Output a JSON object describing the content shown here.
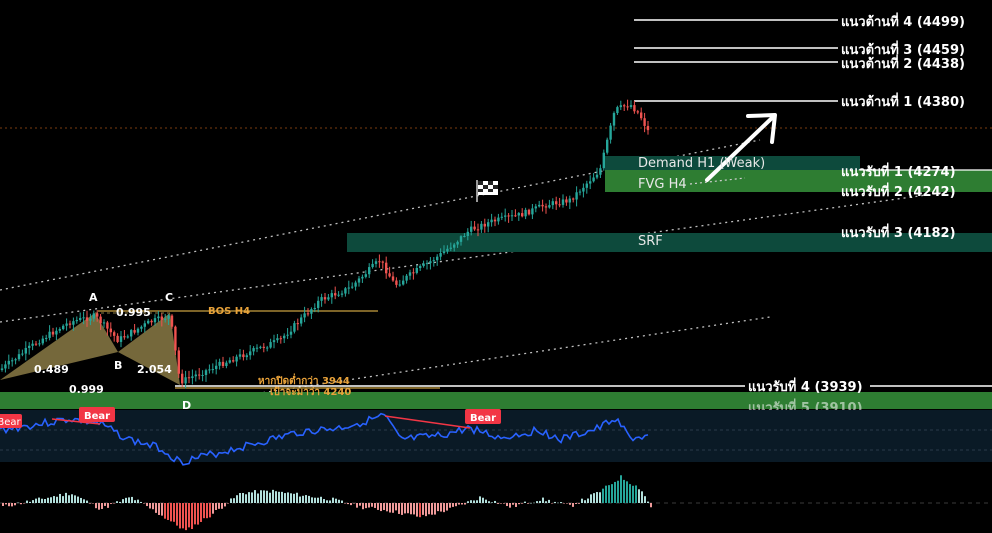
{
  "chart_data": {
    "type": "candlestick",
    "instrument_note": "",
    "y_range": [
      3880,
      4520
    ],
    "resistance_levels": [
      {
        "label": "แนวต้านที่ 4 (4499)",
        "value": 4499
      },
      {
        "label": "แนวต้านที่ 3 (4459)",
        "value": 4459
      },
      {
        "label": "แนวต้านที่ 2 (4438)",
        "value": 4438
      },
      {
        "label": "แนวต้านที่ 1 (4380)",
        "value": 4380
      }
    ],
    "support_levels": [
      {
        "label": "แนวรับที่ 1 (4274)",
        "value": 4274
      },
      {
        "label": "แนวรับที่ 2 (4242)",
        "value": 4242
      },
      {
        "label": "แนวรับที่ 3 (4182)",
        "value": 4182
      },
      {
        "label": "แนวรับที่ 4 (3939)",
        "value": 3939
      },
      {
        "label": "แนวรับที่ 5 (3910)",
        "value": 3910
      }
    ],
    "zones": [
      {
        "label": "Demand H1 (Weak)",
        "color": "#0d4a3c"
      },
      {
        "label": "FVG H4",
        "color": "#2e7d32"
      },
      {
        "label": "SRF",
        "color": "#0d4a3c"
      }
    ],
    "pattern": {
      "points": [
        "A",
        "B",
        "C",
        "D"
      ],
      "ratios": [
        "0.995",
        "0.489",
        "2.054",
        "0.999"
      ]
    },
    "annotations": {
      "bos": "BOS H4",
      "note1": "หากปิดต่ำกว่า 3944",
      "note2": "เป้าจะมาว่า 4240"
    },
    "rsi_divergence_labels": [
      "Bear",
      "Bear",
      "Bear"
    ],
    "colors": {
      "bull": "#26a69a",
      "bear": "#ef5350",
      "rsi_line": "#2962ff",
      "divergence": "#f23645",
      "zone_dark": "#0d4a3c",
      "zone_green": "#2e7d32",
      "fib_fill": "#8a7a45"
    }
  }
}
